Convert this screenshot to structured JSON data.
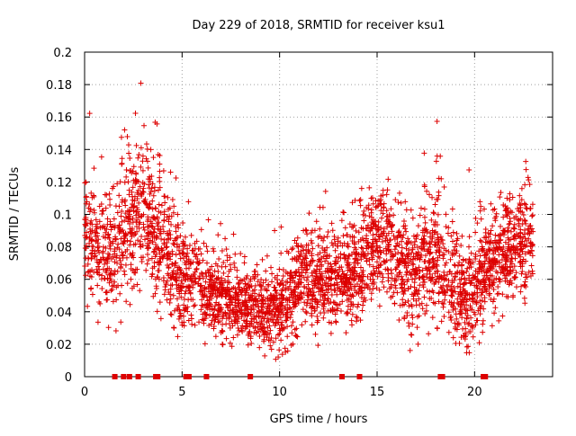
{
  "chart_data": {
    "type": "scatter",
    "title": "Day 229 of 2018, SRMTID for receiver ksu1",
    "xlabel": "GPS time / hours",
    "ylabel": "SRMTID / TECUs",
    "xlim": [
      0,
      24
    ],
    "ylim": [
      0,
      0.2
    ],
    "xticks": [
      0,
      5,
      10,
      15,
      20
    ],
    "xtick_labels": [
      "0",
      "5",
      "10",
      "15",
      "20"
    ],
    "yticks": [
      0,
      0.02,
      0.04,
      0.06,
      0.08,
      0.1,
      0.12,
      0.14,
      0.16,
      0.18,
      0.2
    ],
    "ytick_labels": [
      "0",
      "0.02",
      "0.04",
      "0.06",
      "0.08",
      "0.1",
      "0.12",
      "0.14",
      "0.16",
      "0.18",
      "0.2"
    ],
    "grid": true,
    "marker": "+",
    "color": "#dd0000",
    "point_density_per_hour": 150,
    "trend": {
      "x": [
        0,
        0.5,
        1,
        1.5,
        2,
        2.5,
        3,
        3.5,
        4,
        4.5,
        5,
        5.5,
        6,
        6.5,
        7,
        7.5,
        8,
        8.5,
        9,
        9.5,
        10,
        10.5,
        11,
        11.5,
        12,
        12.5,
        13,
        13.5,
        14,
        14.5,
        15,
        15.5,
        16,
        16.5,
        17,
        17.5,
        18,
        18.5,
        19,
        19.5,
        20,
        20.5,
        21,
        21.5,
        22,
        22.5,
        23
      ],
      "y": [
        0.085,
        0.08,
        0.075,
        0.075,
        0.09,
        0.095,
        0.105,
        0.095,
        0.085,
        0.07,
        0.065,
        0.06,
        0.055,
        0.05,
        0.05,
        0.045,
        0.045,
        0.045,
        0.04,
        0.038,
        0.04,
        0.045,
        0.055,
        0.06,
        0.06,
        0.058,
        0.06,
        0.062,
        0.065,
        0.075,
        0.085,
        0.08,
        0.07,
        0.06,
        0.065,
        0.07,
        0.075,
        0.065,
        0.055,
        0.045,
        0.055,
        0.065,
        0.07,
        0.075,
        0.075,
        0.08,
        0.085
      ]
    },
    "spread": {
      "x": [
        0,
        2,
        3,
        4,
        6,
        9,
        10,
        12,
        15,
        18,
        20,
        23
      ],
      "y": [
        0.022,
        0.025,
        0.03,
        0.025,
        0.018,
        0.014,
        0.016,
        0.02,
        0.022,
        0.024,
        0.02,
        0.022
      ]
    },
    "zero_markers_x": [
      1.55,
      2.0,
      2.3,
      2.75,
      3.65,
      3.75,
      5.2,
      5.35,
      6.25,
      8.5,
      13.2,
      14.1,
      18.25,
      18.35,
      20.45,
      20.55
    ]
  }
}
